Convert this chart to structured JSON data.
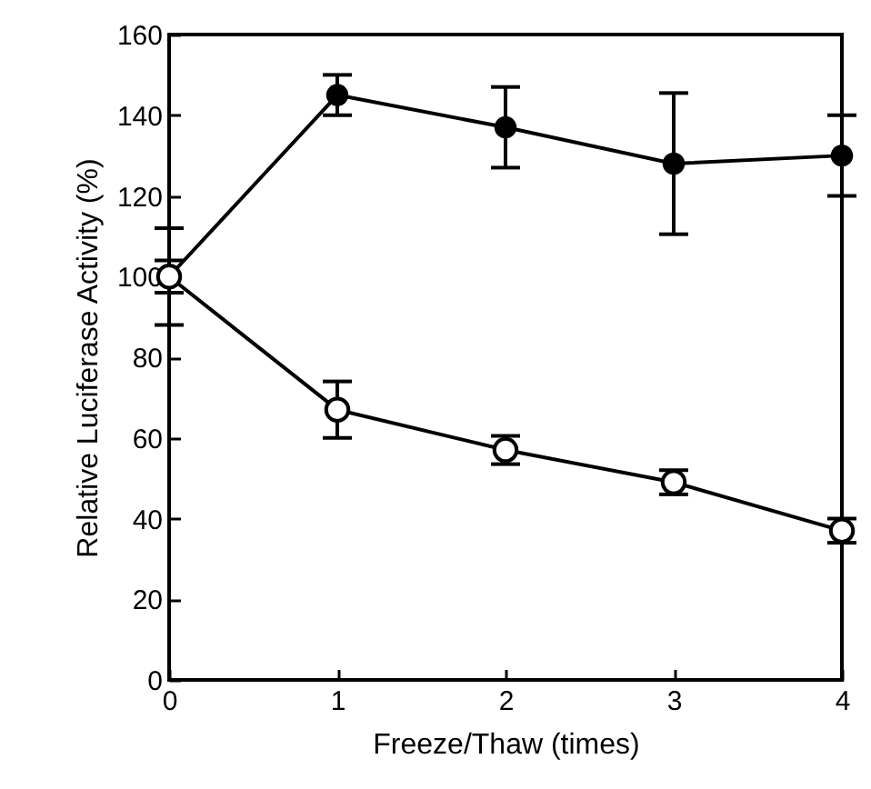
{
  "chart_data": {
    "type": "line",
    "xlabel": "Freeze/Thaw (times)",
    "ylabel": "Relative Luciferase Activity (%)",
    "x": [
      0,
      1,
      2,
      3,
      4
    ],
    "xlim": [
      0,
      4
    ],
    "xticks": [
      0,
      1,
      2,
      3,
      4
    ],
    "ylim": [
      0,
      160
    ],
    "yticks": [
      0,
      20,
      40,
      60,
      80,
      100,
      120,
      140,
      160
    ],
    "marker": "circle",
    "line_style": "solid",
    "series": [
      {
        "color": "#000000",
        "values": [
          100,
          145,
          137,
          128,
          130
        ],
        "errors": [
          12,
          5,
          10,
          17.5,
          10
        ]
      },
      {
        "color": "#000000",
        "values": [
          100,
          67,
          57,
          49,
          37
        ],
        "errors": [
          4,
          7,
          3.5,
          3,
          3
        ]
      }
    ]
  }
}
